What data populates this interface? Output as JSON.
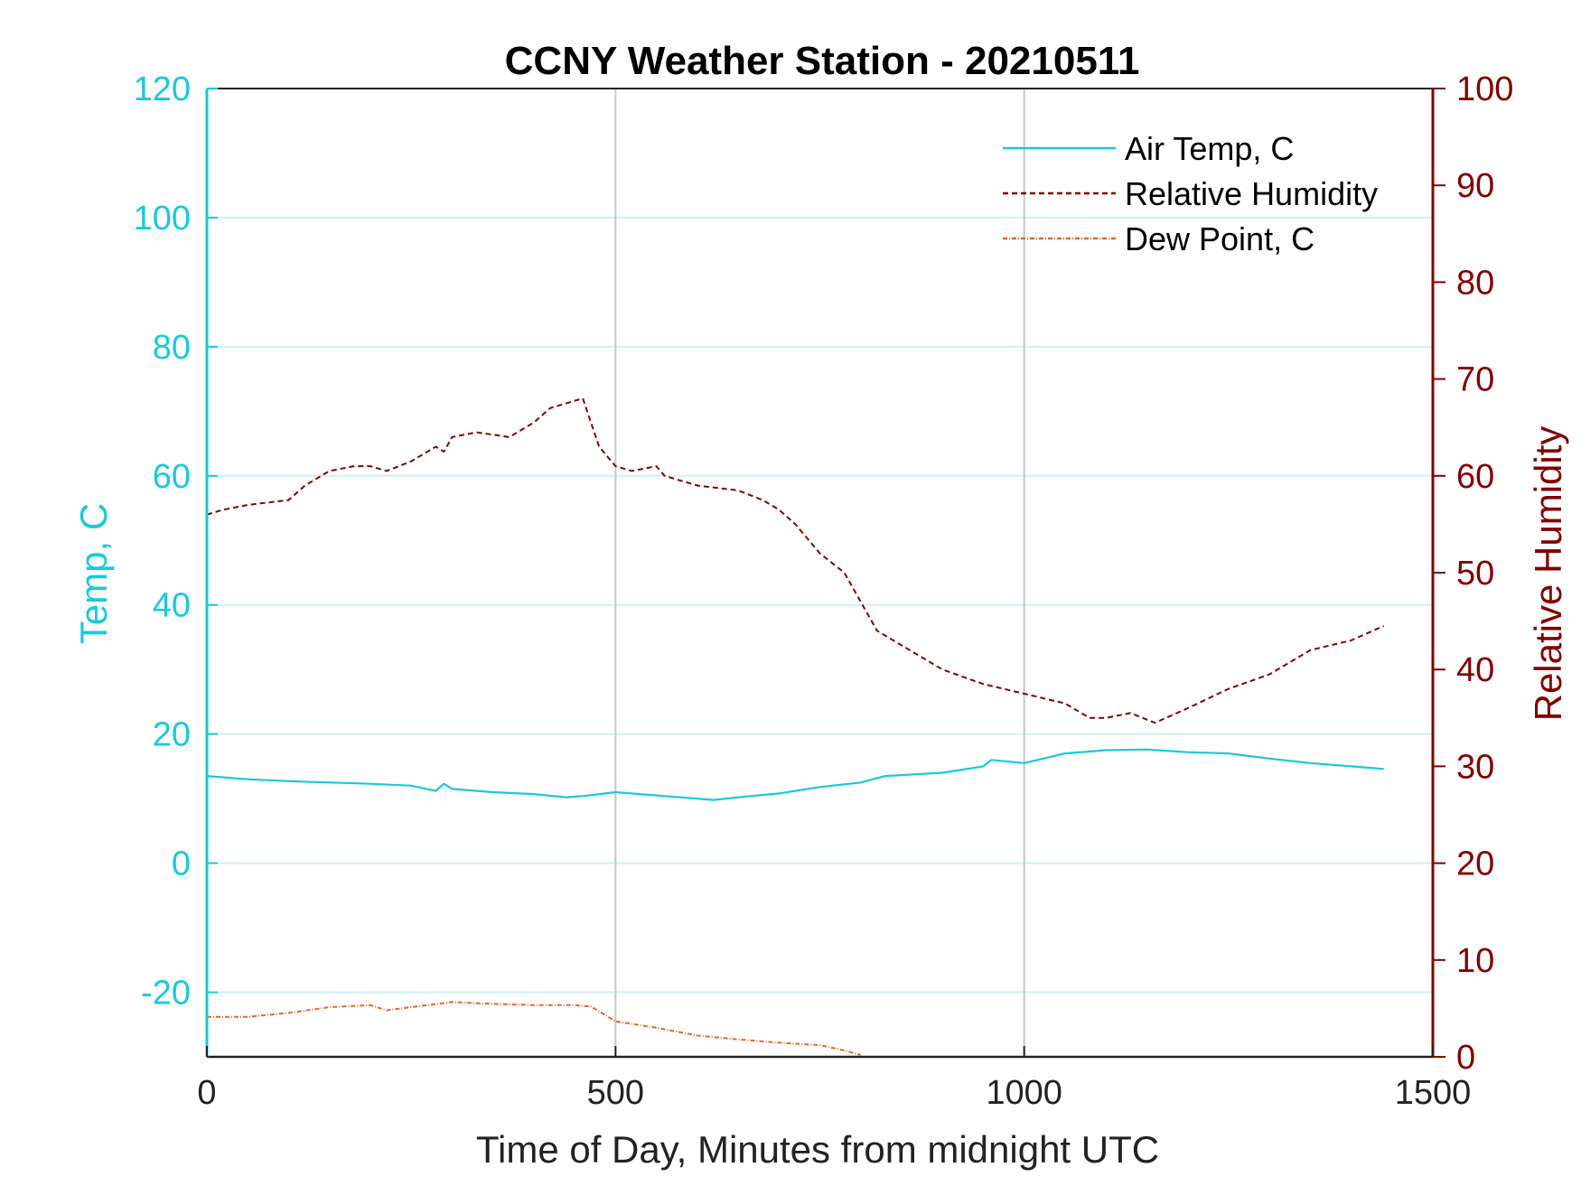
{
  "chart_data": {
    "type": "line",
    "title": "CCNY Weather Station - 20210511",
    "xlabel": "Time of Day, Minutes from midnight UTC",
    "ylabel_left": "Temp, C",
    "ylabel_right": "Relative Humidity",
    "xlim": [
      0,
      1500
    ],
    "ylim_left": [
      -30,
      120
    ],
    "ylim_right": [
      0,
      100
    ],
    "x_ticks": [
      "0",
      "500",
      "1000",
      "1500"
    ],
    "y_left_ticks": [
      "-20",
      "0",
      "20",
      "40",
      "60",
      "80",
      "100",
      "120"
    ],
    "y_right_ticks": [
      "0",
      "10",
      "20",
      "30",
      "40",
      "50",
      "60",
      "70",
      "80",
      "90",
      "100"
    ],
    "legend_position": "top-right",
    "colors": {
      "temp": "#1bc8da",
      "humidity": "#800000",
      "dewpoint": "#e0682a",
      "grid": "#cfeff5",
      "xgrid": "#c0c8d0"
    },
    "series": [
      {
        "name": "Air Temp, C",
        "axis": "left",
        "style": "solid",
        "x": [
          0,
          50,
          100,
          150,
          200,
          250,
          280,
          290,
          300,
          350,
          400,
          440,
          460,
          500,
          550,
          600,
          620,
          650,
          700,
          750,
          800,
          830,
          900,
          950,
          960,
          1000,
          1050,
          1100,
          1150,
          1200,
          1250,
          1300,
          1350,
          1400,
          1440
        ],
        "y": [
          13.5,
          13.0,
          12.7,
          12.5,
          12.3,
          12.0,
          11.2,
          12.3,
          11.5,
          11.0,
          10.7,
          10.2,
          10.4,
          11.0,
          10.5,
          10.0,
          9.8,
          10.2,
          10.8,
          11.8,
          12.5,
          13.5,
          14.0,
          15.0,
          16.0,
          15.5,
          17.0,
          17.5,
          17.6,
          17.2,
          17.0,
          16.2,
          15.5,
          15.0,
          14.6
        ]
      },
      {
        "name": "Relative Humidity",
        "axis": "right",
        "style": "dashed",
        "x": [
          0,
          20,
          50,
          100,
          120,
          150,
          180,
          200,
          220,
          250,
          280,
          290,
          300,
          330,
          370,
          400,
          420,
          440,
          460,
          480,
          500,
          520,
          550,
          560,
          600,
          650,
          680,
          700,
          720,
          750,
          780,
          800,
          820,
          850,
          880,
          900,
          950,
          1000,
          1050,
          1080,
          1100,
          1130,
          1160,
          1200,
          1250,
          1300,
          1350,
          1400,
          1440
        ],
        "y": [
          56,
          56.5,
          57,
          57.5,
          59,
          60.5,
          61,
          61,
          60.5,
          61.5,
          63,
          62.5,
          64,
          64.5,
          64,
          65.5,
          67,
          67.5,
          68,
          63,
          61,
          60.5,
          61,
          60,
          59,
          58.5,
          57.5,
          56.5,
          55,
          52,
          50,
          47,
          44,
          42.5,
          41,
          40,
          38.5,
          37.5,
          36.5,
          35,
          35,
          35.5,
          34.5,
          36,
          38,
          39.5,
          42,
          43,
          44.5
        ]
      },
      {
        "name": "Dew Point, C",
        "axis": "left",
        "style": "dash-dot",
        "x": [
          0,
          50,
          100,
          150,
          200,
          220,
          250,
          300,
          350,
          400,
          450,
          470,
          500,
          550,
          600,
          650,
          700,
          750,
          780,
          800
        ],
        "y": [
          -23.8,
          -23.8,
          -23.2,
          -22.3,
          -22.0,
          -22.8,
          -22.3,
          -21.5,
          -21.8,
          -22.0,
          -22.0,
          -22.2,
          -24.5,
          -25.5,
          -26.7,
          -27.3,
          -27.8,
          -28.2,
          -29.0,
          -29.7
        ]
      }
    ]
  }
}
